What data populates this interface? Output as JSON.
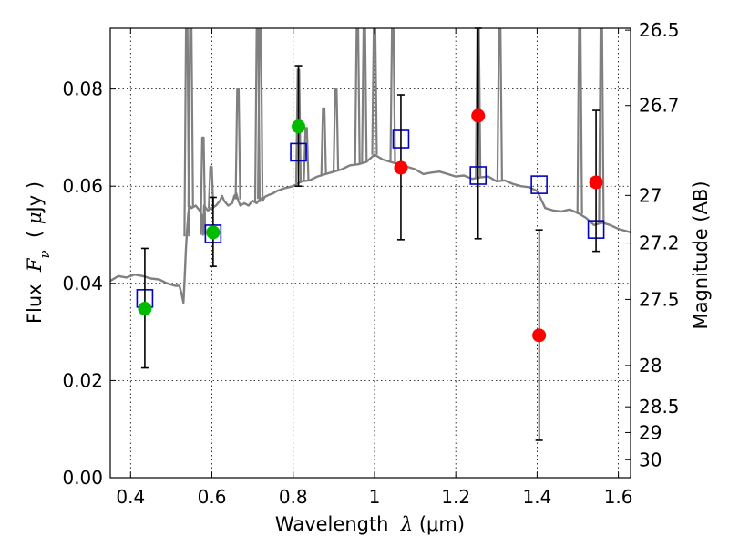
{
  "chart_data": {
    "type": "scatter",
    "xlabel": "Wavelength  λ (μm)",
    "xlabel_parts": {
      "prefix": "Wavelength  ",
      "symbol": "λ",
      "unit": " (μm)"
    },
    "ylabel": "Flux  Fν  ( μJy )",
    "ylabel_parts": {
      "prefix": "Flux  ",
      "symbol": "F",
      "subscript": "ν",
      "suffix": "  ( ",
      "unit_symbol": "μ",
      "unit": "Jy )"
    },
    "y2label": "Magnitude (AB)",
    "xlim": [
      0.35,
      1.63
    ],
    "ylim": [
      0.0,
      0.0925
    ],
    "grid": true,
    "x_ticks": [
      {
        "value": 0.4,
        "label": "0.4"
      },
      {
        "value": 0.6,
        "label": "0.6"
      },
      {
        "value": 0.8,
        "label": "0.8"
      },
      {
        "value": 1.0,
        "label": "1"
      },
      {
        "value": 1.2,
        "label": "1.2"
      },
      {
        "value": 1.4,
        "label": "1.4"
      },
      {
        "value": 1.6,
        "label": "1.6"
      }
    ],
    "y_ticks": [
      {
        "value": 0.0,
        "label": "0.00"
      },
      {
        "value": 0.02,
        "label": "0.02"
      },
      {
        "value": 0.04,
        "label": "0.04"
      },
      {
        "value": 0.06,
        "label": "0.06"
      },
      {
        "value": 0.08,
        "label": "0.08"
      }
    ],
    "y2_ticks": [
      {
        "flux": 0.0921,
        "label": "26.5"
      },
      {
        "flux": 0.0766,
        "label": "26.7"
      },
      {
        "flux": 0.0581,
        "label": "27"
      },
      {
        "flux": 0.0483,
        "label": "27.2"
      },
      {
        "flux": 0.0367,
        "label": "27.5"
      },
      {
        "flux": 0.0231,
        "label": "28"
      },
      {
        "flux": 0.0146,
        "label": "28.5"
      },
      {
        "flux": 0.0093,
        "label": "29"
      },
      {
        "flux": 0.0037,
        "label": "30"
      }
    ],
    "series": [
      {
        "name": "model_spectrum",
        "kind": "line",
        "color": "#808080",
        "x": [
          0.35,
          0.37,
          0.39,
          0.41,
          0.43,
          0.45,
          0.47,
          0.49,
          0.51,
          0.52,
          0.525,
          0.53,
          0.533,
          0.536,
          0.539,
          0.542,
          0.545,
          0.55,
          0.56,
          0.57,
          0.575,
          0.578,
          0.581,
          0.585,
          0.59,
          0.6,
          0.61,
          0.62,
          0.625,
          0.63,
          0.64,
          0.65,
          0.655,
          0.66,
          0.665,
          0.67,
          0.68,
          0.69,
          0.7,
          0.71,
          0.72,
          0.725,
          0.73,
          0.74,
          0.75,
          0.76,
          0.78,
          0.8,
          0.82,
          0.84,
          0.86,
          0.88,
          0.9,
          0.92,
          0.94,
          0.96,
          0.98,
          1.0,
          1.02,
          1.04,
          1.06,
          1.08,
          1.1,
          1.12,
          1.14,
          1.16,
          1.18,
          1.2,
          1.22,
          1.24,
          1.26,
          1.28,
          1.3,
          1.32,
          1.34,
          1.36,
          1.38,
          1.4,
          1.42,
          1.44,
          1.46,
          1.48,
          1.5,
          1.52,
          1.54,
          1.56,
          1.58,
          1.6,
          1.63
        ],
        "y": [
          0.0405,
          0.0415,
          0.0412,
          0.0418,
          0.0415,
          0.041,
          0.0408,
          0.04,
          0.0395,
          0.0395,
          0.038,
          0.036,
          0.041,
          0.047,
          0.051,
          0.0545,
          0.056,
          0.0555,
          0.056,
          0.055,
          0.054,
          0.05,
          0.056,
          0.0555,
          0.055,
          0.0555,
          0.056,
          0.057,
          0.058,
          0.057,
          0.056,
          0.0565,
          0.058,
          0.0585,
          0.057,
          0.056,
          0.0565,
          0.056,
          0.057,
          0.0565,
          0.0575,
          0.057,
          0.0578,
          0.0582,
          0.0585,
          0.059,
          0.0596,
          0.06,
          0.061,
          0.0612,
          0.062,
          0.0625,
          0.063,
          0.0635,
          0.0643,
          0.0645,
          0.065,
          0.0665,
          0.0655,
          0.065,
          0.0645,
          0.064,
          0.0635,
          0.0625,
          0.0628,
          0.063,
          0.0625,
          0.062,
          0.0622,
          0.0615,
          0.0618,
          0.062,
          0.061,
          0.0612,
          0.0605,
          0.06,
          0.0598,
          0.059,
          0.0555,
          0.055,
          0.0548,
          0.0552,
          0.0545,
          0.0535,
          0.052,
          0.0525,
          0.052,
          0.0512,
          0.0505
        ]
      },
      {
        "name": "model_spikes",
        "kind": "spikes",
        "color": "#808080",
        "x": [
          0.538,
          0.548,
          0.578,
          0.598,
          0.664,
          0.712,
          0.719,
          0.813,
          0.832,
          0.875,
          0.905,
          0.975,
          0.958,
          1.0,
          1.045,
          1.255,
          1.308,
          1.505,
          1.558
        ],
        "y": [
          0.093,
          0.093,
          0.07,
          0.064,
          0.08,
          0.093,
          0.093,
          0.084,
          0.072,
          0.076,
          0.08,
          0.093,
          0.093,
          0.093,
          0.093,
          0.093,
          0.093,
          0.093,
          0.093
        ]
      },
      {
        "name": "model_photometry",
        "kind": "open_square",
        "color": "#0000cc",
        "x": [
          0.435,
          0.603,
          0.813,
          1.065,
          1.255,
          1.405,
          1.545
        ],
        "y": [
          0.0369,
          0.0502,
          0.067,
          0.0697,
          0.0622,
          0.0603,
          0.0511
        ]
      },
      {
        "name": "detections_optical",
        "kind": "filled_circle",
        "color": "#00bb00",
        "x": [
          0.435,
          0.603,
          0.813
        ],
        "y": [
          0.0348,
          0.0505,
          0.0723
        ],
        "yerr_low": [
          0.0226,
          0.0435,
          0.06
        ],
        "yerr_high": [
          0.0472,
          0.0577,
          0.0848
        ]
      },
      {
        "name": "detections_infrared",
        "kind": "filled_circle",
        "color": "#ff0000",
        "x": [
          1.065,
          1.255,
          1.405,
          1.545
        ],
        "y": [
          0.0638,
          0.0745,
          0.0293,
          0.0608
        ],
        "yerr_low": [
          0.049,
          0.0492,
          0.0077,
          0.0466
        ],
        "yerr_high": [
          0.0788,
          0.0925,
          0.051,
          0.0756
        ]
      }
    ]
  }
}
